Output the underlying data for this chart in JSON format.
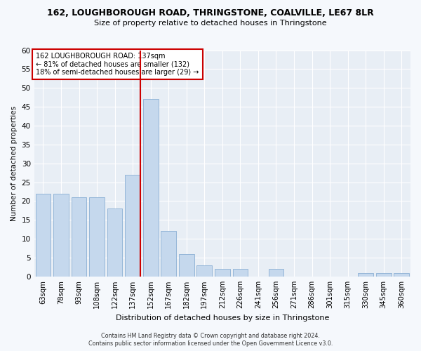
{
  "title1": "162, LOUGHBOROUGH ROAD, THRINGSTONE, COALVILLE, LE67 8LR",
  "title2": "Size of property relative to detached houses in Thringstone",
  "xlabel": "Distribution of detached houses by size in Thringstone",
  "ylabel": "Number of detached properties",
  "categories": [
    "63sqm",
    "78sqm",
    "93sqm",
    "108sqm",
    "122sqm",
    "137sqm",
    "152sqm",
    "167sqm",
    "182sqm",
    "197sqm",
    "212sqm",
    "226sqm",
    "241sqm",
    "256sqm",
    "271sqm",
    "286sqm",
    "301sqm",
    "315sqm",
    "330sqm",
    "345sqm",
    "360sqm"
  ],
  "values": [
    22,
    22,
    21,
    21,
    18,
    27,
    47,
    12,
    6,
    3,
    2,
    2,
    0,
    2,
    0,
    0,
    0,
    0,
    1,
    1,
    1
  ],
  "bar_color": "#c5d8ed",
  "bar_edge_color": "#8aafd4",
  "red_line_index": 5,
  "red_line_color": "#cc0000",
  "ylim": [
    0,
    60
  ],
  "yticks": [
    0,
    5,
    10,
    15,
    20,
    25,
    30,
    35,
    40,
    45,
    50,
    55,
    60
  ],
  "legend_text_line1": "162 LOUGHBOROUGH ROAD: 137sqm",
  "legend_text_line2": "← 81% of detached houses are smaller (132)",
  "legend_text_line3": "18% of semi-detached houses are larger (29) →",
  "legend_box_color": "#cc0000",
  "fig_bg_color": "#f5f8fc",
  "ax_bg_color": "#e8eef5",
  "footer1": "Contains HM Land Registry data © Crown copyright and database right 2024.",
  "footer2": "Contains public sector information licensed under the Open Government Licence v3.0."
}
